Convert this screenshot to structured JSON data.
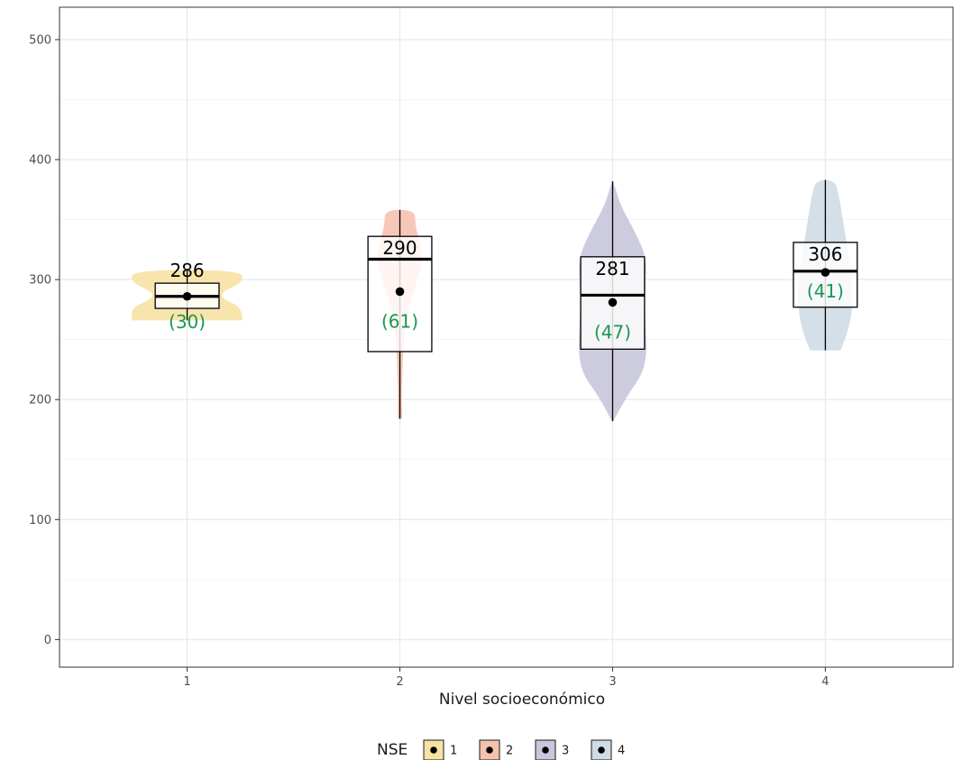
{
  "chart_data": {
    "type": "violin-boxplot",
    "xlabel": "Nivel socioeconómico",
    "ylabel": "",
    "ylim": [
      -23,
      527
    ],
    "yticks": [
      0,
      100,
      200,
      300,
      400,
      500
    ],
    "grid": true,
    "legend_position": "bottom",
    "legend_title": "NSE",
    "n_color": "#1a9850",
    "categories": [
      "1",
      "2",
      "3",
      "4"
    ],
    "groups": [
      {
        "name": "1",
        "color": "#f6e2a4",
        "min": 266,
        "q1": 276,
        "median": 286,
        "q3": 297,
        "max": 308,
        "mean": 286,
        "mean_label": "286",
        "n_label": "(30)",
        "violin_shape": [
          [
            0,
            1.0
          ],
          [
            0.25,
            1.0
          ],
          [
            0.4,
            0.7
          ],
          [
            0.5,
            0.6
          ],
          [
            0.6,
            0.7
          ],
          [
            0.75,
            1.0
          ],
          [
            1,
            1.0
          ]
        ],
        "violin_half_width": 0.52
      },
      {
        "name": "2",
        "color": "#f6c2b0",
        "min": 184,
        "q1": 240,
        "median": 317,
        "q3": 336,
        "max": 358,
        "mean": 290,
        "mean_label": "290",
        "n_label": "(61)",
        "violin_shape": [
          [
            0,
            0.1
          ],
          [
            0.1,
            0.08
          ],
          [
            0.2,
            0.1
          ],
          [
            0.35,
            0.15
          ],
          [
            0.5,
            0.3
          ],
          [
            0.65,
            0.7
          ],
          [
            0.75,
            1.0
          ],
          [
            0.85,
            0.85
          ],
          [
            0.93,
            0.65
          ],
          [
            1,
            0.65
          ]
        ],
        "violin_half_width": 0.22
      },
      {
        "name": "3",
        "color": "#c8c7dc",
        "min": 182,
        "q1": 242,
        "median": 287,
        "q3": 319,
        "max": 382,
        "mean": 281,
        "mean_label": "281",
        "n_label": "(47)",
        "violin_shape": [
          [
            0,
            0.02
          ],
          [
            0.1,
            0.35
          ],
          [
            0.2,
            0.8
          ],
          [
            0.3,
            0.9
          ],
          [
            0.42,
            0.85
          ],
          [
            0.55,
            0.85
          ],
          [
            0.68,
            0.9
          ],
          [
            0.8,
            0.55
          ],
          [
            0.9,
            0.2
          ],
          [
            1,
            0.02
          ]
        ],
        "violin_half_width": 0.36
      },
      {
        "name": "4",
        "color": "#cfdce6",
        "min": 241,
        "q1": 277,
        "median": 307,
        "q3": 331,
        "max": 383,
        "mean": 306,
        "mean_label": "306",
        "n_label": "(41)",
        "violin_shape": [
          [
            0,
            0.55
          ],
          [
            0.08,
            0.75
          ],
          [
            0.2,
            0.95
          ],
          [
            0.35,
            1.0
          ],
          [
            0.5,
            0.9
          ],
          [
            0.65,
            0.75
          ],
          [
            0.8,
            0.6
          ],
          [
            0.9,
            0.5
          ],
          [
            1,
            0.35
          ]
        ],
        "violin_half_width": 0.26
      }
    ]
  }
}
